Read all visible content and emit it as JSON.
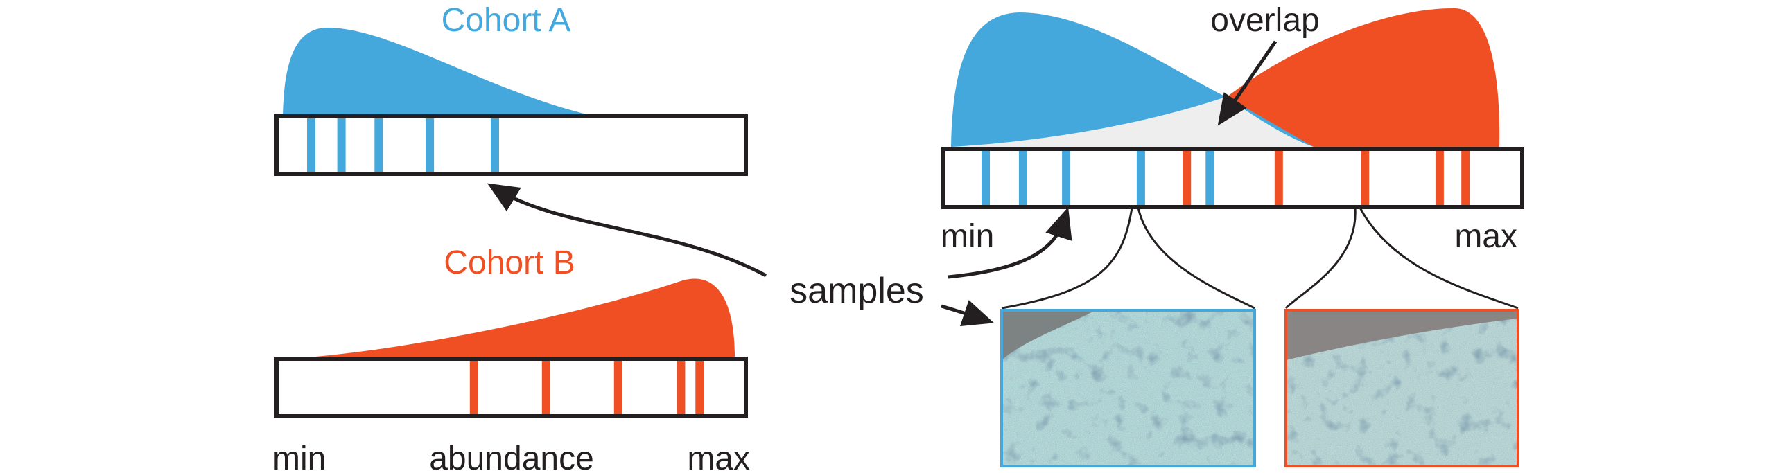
{
  "left_panel": {
    "cohort_a_label": "Cohort A",
    "cohort_b_label": "Cohort B",
    "axis": {
      "min_label": "min",
      "middle_label": "abundance",
      "max_label": "max"
    },
    "cohort_a_samples": [
      0.07,
      0.135,
      0.215,
      0.325,
      0.465
    ],
    "cohort_b_samples": [
      0.42,
      0.575,
      0.73,
      0.865,
      0.905
    ]
  },
  "right_panel": {
    "overlap_label": "overlap",
    "axis": {
      "min_label": "min",
      "max_label": "max"
    },
    "blue_samples": [
      0.07,
      0.135,
      0.21,
      0.34,
      0.46
    ],
    "red_samples": [
      0.42,
      0.58,
      0.73,
      0.86,
      0.905
    ]
  },
  "samples_label": "samples",
  "colors": {
    "cohort_a": "#44a8dd",
    "cohort_b": "#f04e23",
    "overlap": "#eeeeee",
    "outline": "#231f20"
  }
}
